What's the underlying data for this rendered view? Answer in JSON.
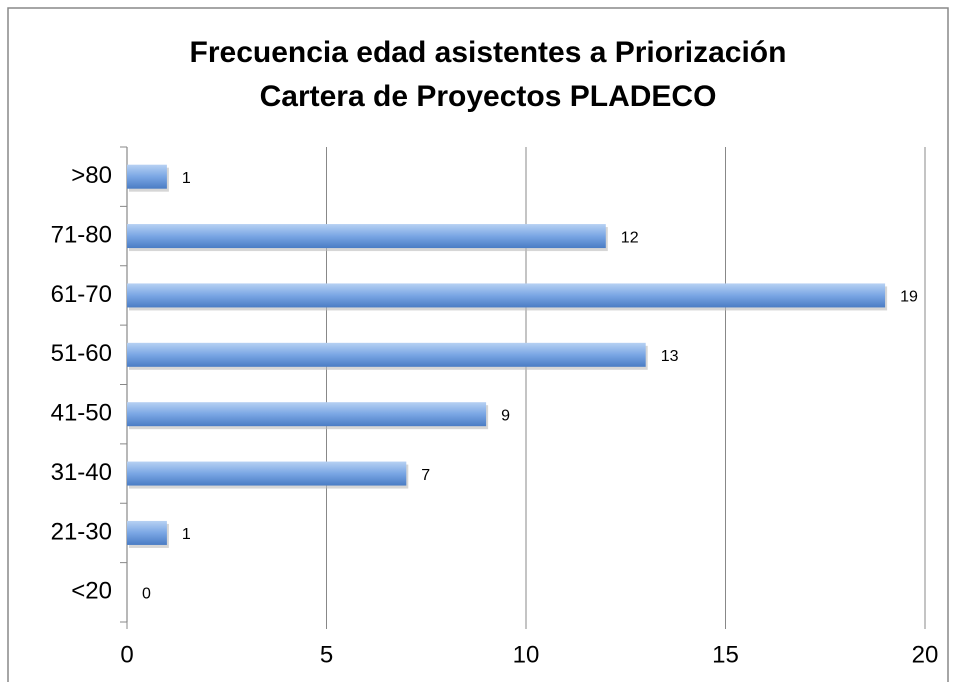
{
  "chart_data": {
    "type": "bar",
    "orientation": "horizontal",
    "title": [
      "Frecuencia edad asistentes a Priorización",
      "Cartera de Proyectos PLADECO"
    ],
    "categories": [
      ">80",
      "71-80",
      "61-70",
      "51-60",
      "41-50",
      "31-40",
      "21-30",
      "<20"
    ],
    "values": [
      1,
      12,
      19,
      13,
      9,
      7,
      1,
      0
    ],
    "color": "#4f81bd",
    "xlim": [
      0,
      20
    ],
    "xticks": [
      0,
      5,
      10,
      15,
      20
    ],
    "grid": true
  }
}
